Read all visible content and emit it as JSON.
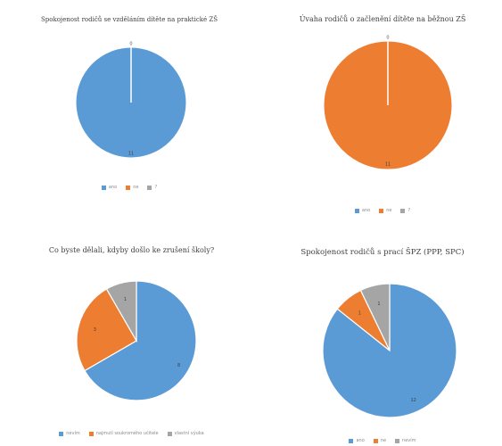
{
  "colors": {
    "blue": "#5b9bd5",
    "orange": "#ed7d31",
    "gray": "#a5a5a5"
  },
  "chart_data": [
    {
      "type": "pie",
      "title": "Spokojenost rodičů se vzděláním dítěte na praktické ZŠ",
      "categories": [
        "ano",
        "ne",
        "?"
      ],
      "values": [
        11,
        0,
        0
      ],
      "data_labels": [
        "11",
        "",
        "0"
      ],
      "legend": "bottom"
    },
    {
      "type": "pie",
      "title": "Úvaha rodičů o začlenění dítěte na běžnou ZŠ",
      "categories": [
        "ano",
        "ne",
        "?"
      ],
      "values": [
        0,
        11,
        0
      ],
      "data_labels": [
        "",
        "11",
        "0"
      ],
      "legend": "bottom"
    },
    {
      "type": "pie",
      "title": "Co byste dělali, kdyby došlo ke zrušení školy?",
      "categories": [
        "nevím",
        "najmutí soukromého učitele",
        "vlastní výuka"
      ],
      "values": [
        8,
        3,
        1
      ],
      "data_labels": [
        "8",
        "3",
        "1"
      ],
      "legend": "bottom"
    },
    {
      "type": "pie",
      "title": "Spokojenost rodičů s prací ŠPZ (PPP, SPC)",
      "categories": [
        "ano",
        "ne",
        "nevím"
      ],
      "values": [
        12,
        1,
        1
      ],
      "data_labels": [
        "12",
        "1",
        "1"
      ],
      "legend": "bottom"
    }
  ]
}
